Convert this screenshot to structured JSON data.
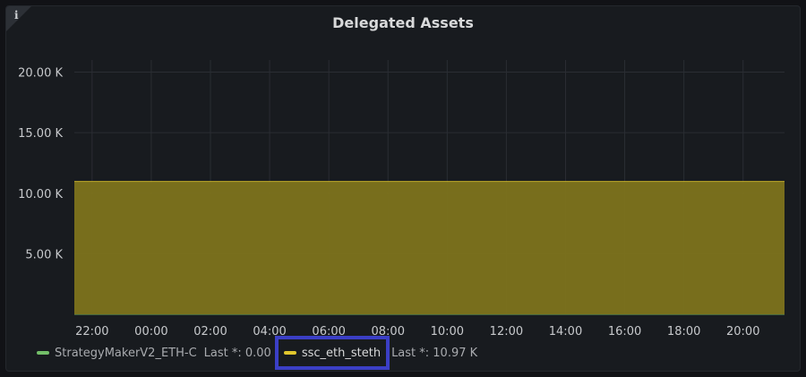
{
  "panel": {
    "title": "Delegated Assets",
    "info_icon": "info-icon",
    "info_glyph": "i"
  },
  "chart_data": {
    "type": "area",
    "title": "Delegated Assets",
    "xlabel": "",
    "ylabel": "",
    "ylim": [
      0,
      21000
    ],
    "y_ticks": [
      {
        "value": 5000,
        "label": "5.00 K"
      },
      {
        "value": 10000,
        "label": "10.00 K"
      },
      {
        "value": 15000,
        "label": "15.00 K"
      },
      {
        "value": 20000,
        "label": "20.00 K"
      }
    ],
    "x_ticks": [
      "22:00",
      "00:00",
      "02:00",
      "04:00",
      "06:00",
      "08:00",
      "10:00",
      "12:00",
      "14:00",
      "16:00",
      "18:00",
      "20:00"
    ],
    "x_range_hours": [
      -0.6,
      23.4
    ],
    "grid": true,
    "legend_position": "bottom-left",
    "series": [
      {
        "name": "StrategyMakerV2_ETH-C",
        "color": "#73bf69",
        "last_label": "Last *: 0.00",
        "values": [
          0,
          0
        ]
      },
      {
        "name": "ssc_eth_steth",
        "color": "#e0c62d",
        "fill_color": "#7d731c",
        "last_label": "Last *: 10.97 K",
        "values": [
          10970,
          10970
        ]
      }
    ]
  }
}
